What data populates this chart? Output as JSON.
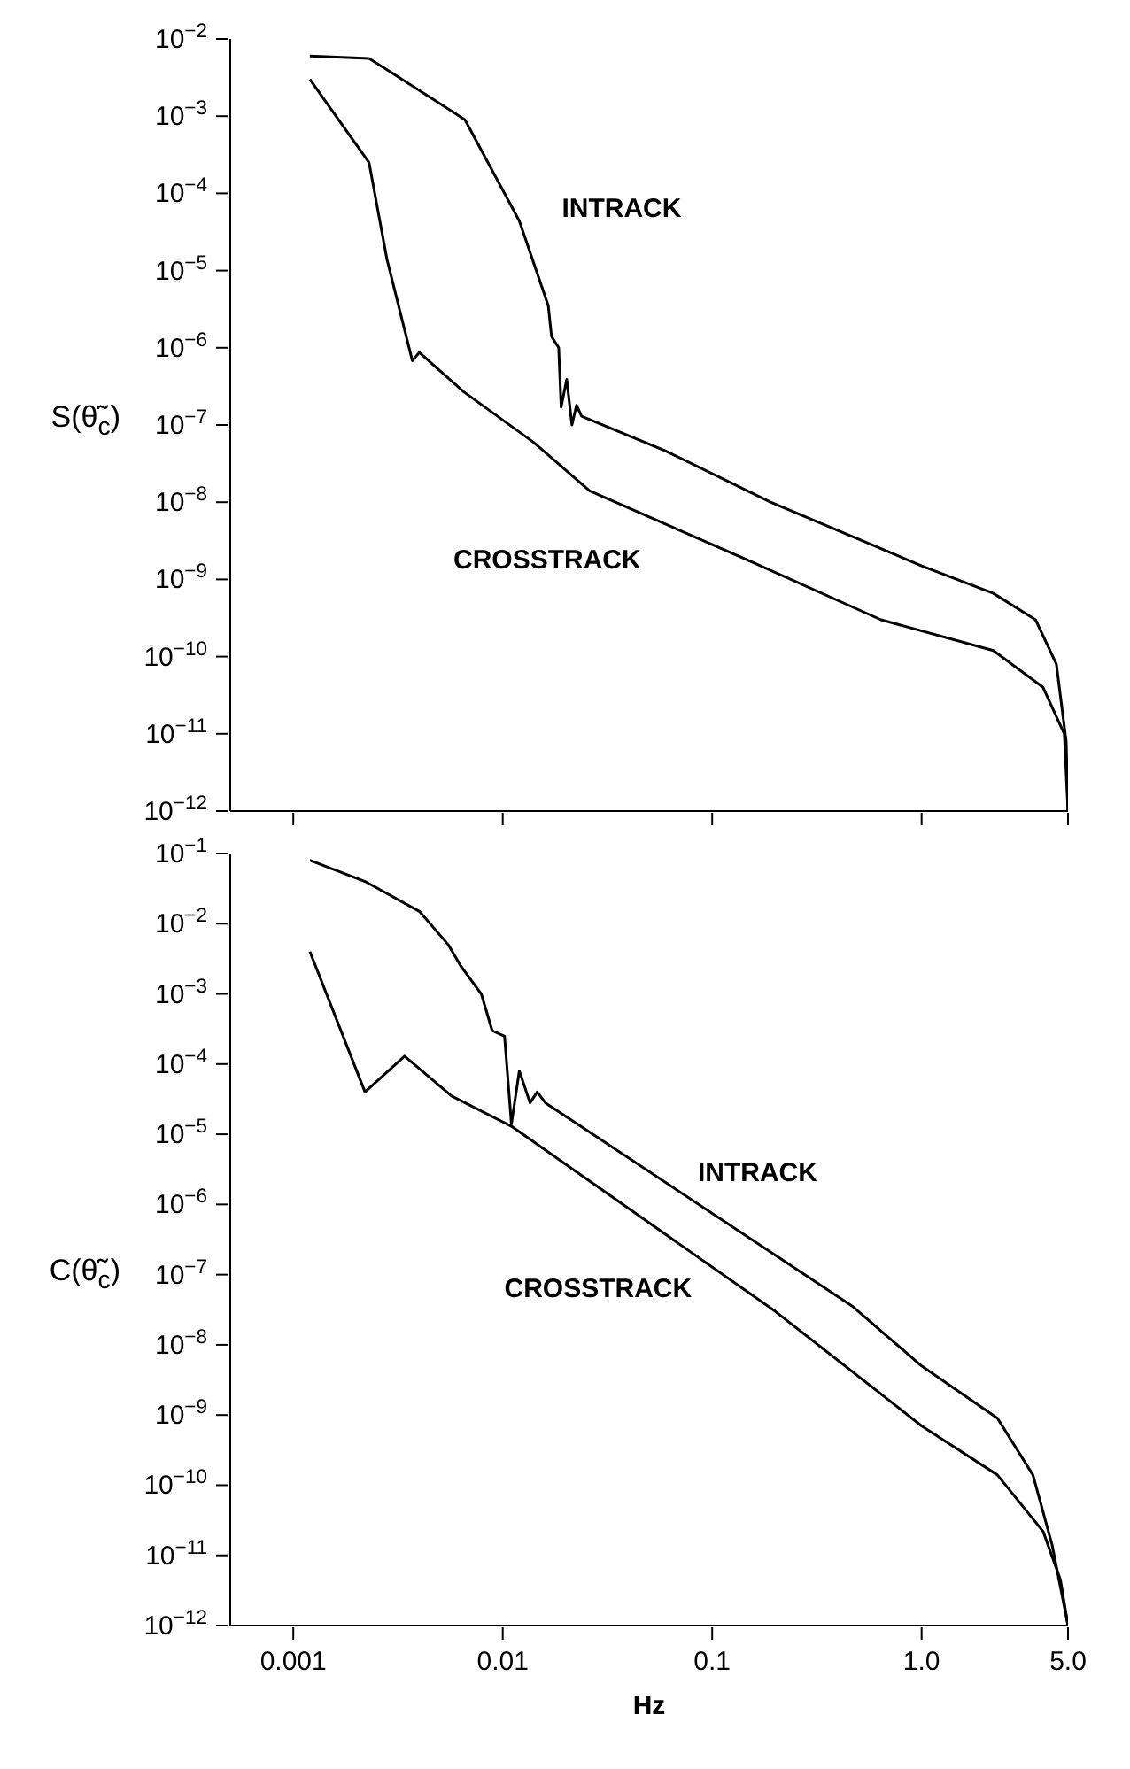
{
  "chart_data": [
    {
      "type": "line",
      "ylabel": "S(θ̃̇$_{c}$)",
      "log": "xy",
      "tick_labels": "y",
      "xlim": [
        0.0005,
        5
      ],
      "xticks": [
        {
          "value": 0.001,
          "label": null
        },
        {
          "value": 0.01,
          "label": null
        },
        {
          "value": 0.1,
          "label": null
        },
        {
          "value": 1,
          "label": null
        },
        {
          "value": 5,
          "label": null
        }
      ],
      "ylim": [
        1e-12,
        0.01
      ],
      "yticks": [
        {
          "value": 0.01,
          "label": "10$^{−2}$"
        },
        {
          "value": 0.001,
          "label": "10$^{−3}$"
        },
        {
          "value": 0.0001,
          "label": "10$^{−4}$"
        },
        {
          "value": 1e-05,
          "label": "10$^{−5}$"
        },
        {
          "value": 1e-06,
          "label": "10$^{−6}$"
        },
        {
          "value": 1e-07,
          "label": "10$^{−7}$"
        },
        {
          "value": 1e-08,
          "label": "10$^{−8}$"
        },
        {
          "value": 1e-09,
          "label": "10$^{−9}$"
        },
        {
          "value": 1e-10,
          "label": "10$^{−10}$"
        },
        {
          "value": 1e-11,
          "label": "10$^{−11}$"
        },
        {
          "value": 1e-12,
          "label": "10$^{−12}$"
        }
      ],
      "series": [
        {
          "name": "INTRACK",
          "color": "#000000",
          "x": [
            0.0012,
            0.0023,
            0.0028,
            0.0066,
            0.012,
            0.0165,
            0.0171,
            0.0185,
            0.019,
            0.0202,
            0.0214,
            0.0225,
            0.0238,
            0.059,
            0.19,
            1.0,
            2.2,
            3.5,
            4.4,
            4.9,
            5
          ],
          "values": [
            0.006,
            0.0056,
            0.004,
            0.0009,
            4.4e-05,
            3.5e-06,
            1.4e-06,
            1e-06,
            1.7e-07,
            3.9e-07,
            1e-07,
            1.8e-07,
            1.3e-07,
            4.7e-08,
            1e-08,
            1.5e-09,
            6.6e-10,
            3e-10,
            8e-11,
            8e-12,
            1e-12
          ]
        },
        {
          "name": "CROSSTRACK",
          "color": "#000000",
          "x": [
            0.0012,
            0.0023,
            0.0028,
            0.0037,
            0.004,
            0.0065,
            0.014,
            0.026,
            0.14,
            0.64,
            2.2,
            3.8,
            4.8,
            5
          ],
          "values": [
            0.003,
            0.00025,
            1.4e-05,
            6.8e-07,
            8.7e-07,
            2.7e-07,
            6e-08,
            1.4e-08,
            1.9e-09,
            3e-10,
            1.2e-10,
            4e-11,
            1e-11,
            1e-12
          ]
        }
      ]
    },
    {
      "type": "line",
      "xlabel": "Hz",
      "ylabel": "C(θ̃̇$_{c}$)",
      "log": "xy",
      "xlim": [
        0.0005,
        5
      ],
      "xticks": [
        0.001,
        0.01,
        0.1,
        {
          "value": 1,
          "label": "1.0"
        },
        {
          "value": 5,
          "label": "5.0"
        }
      ],
      "ylim": [
        1e-12,
        0.1
      ],
      "yticks": [
        {
          "value": 0.1,
          "label": "10$^{−1}$"
        },
        {
          "value": 0.01,
          "label": "10$^{−2}$"
        },
        {
          "value": 0.001,
          "label": "10$^{−3}$"
        },
        {
          "value": 0.0001,
          "label": "10$^{−4}$"
        },
        {
          "value": 1e-05,
          "label": "10$^{−5}$"
        },
        {
          "value": 1e-06,
          "label": "10$^{−6}$"
        },
        {
          "value": 1e-07,
          "label": "10$^{−7}$"
        },
        {
          "value": 1e-08,
          "label": "10$^{−8}$"
        },
        {
          "value": 1e-09,
          "label": "10$^{−9}$"
        },
        {
          "value": 1e-10,
          "label": "10$^{−10}$"
        },
        {
          "value": 1e-11,
          "label": "10$^{−11}$"
        },
        {
          "value": 1e-12,
          "label": "10$^{−12}$"
        }
      ],
      "series": [
        {
          "name": "INTRACK",
          "color": "#000000",
          "x": [
            0.0012,
            0.0022,
            0.004,
            0.0055,
            0.0063,
            0.0079,
            0.0089,
            0.0102,
            0.011,
            0.012,
            0.0135,
            0.0146,
            0.016,
            0.47,
            1.0,
            2.3,
            3.4,
            4.2,
            5
          ],
          "values": [
            0.08,
            0.04,
            0.015,
            0.005,
            0.0025,
            0.001,
            0.0003,
            0.00025,
            1.4e-05,
            8e-05,
            2.8e-05,
            4e-05,
            2.8e-05,
            3.5e-08,
            5e-09,
            9e-10,
            1.4e-10,
            1.4e-11,
            1e-12
          ]
        },
        {
          "name": "CROSSTRACK",
          "color": "#000000",
          "x": [
            0.0012,
            0.0022,
            0.0034,
            0.0057,
            0.011,
            0.2,
            1.0,
            2.3,
            3.8,
            4.6,
            5
          ],
          "values": [
            0.004,
            4e-05,
            0.00013,
            3.5e-05,
            1.3e-05,
            3e-08,
            7e-10,
            1.4e-10,
            2.2e-11,
            4.5e-12,
            1e-12
          ]
        }
      ]
    }
  ]
}
